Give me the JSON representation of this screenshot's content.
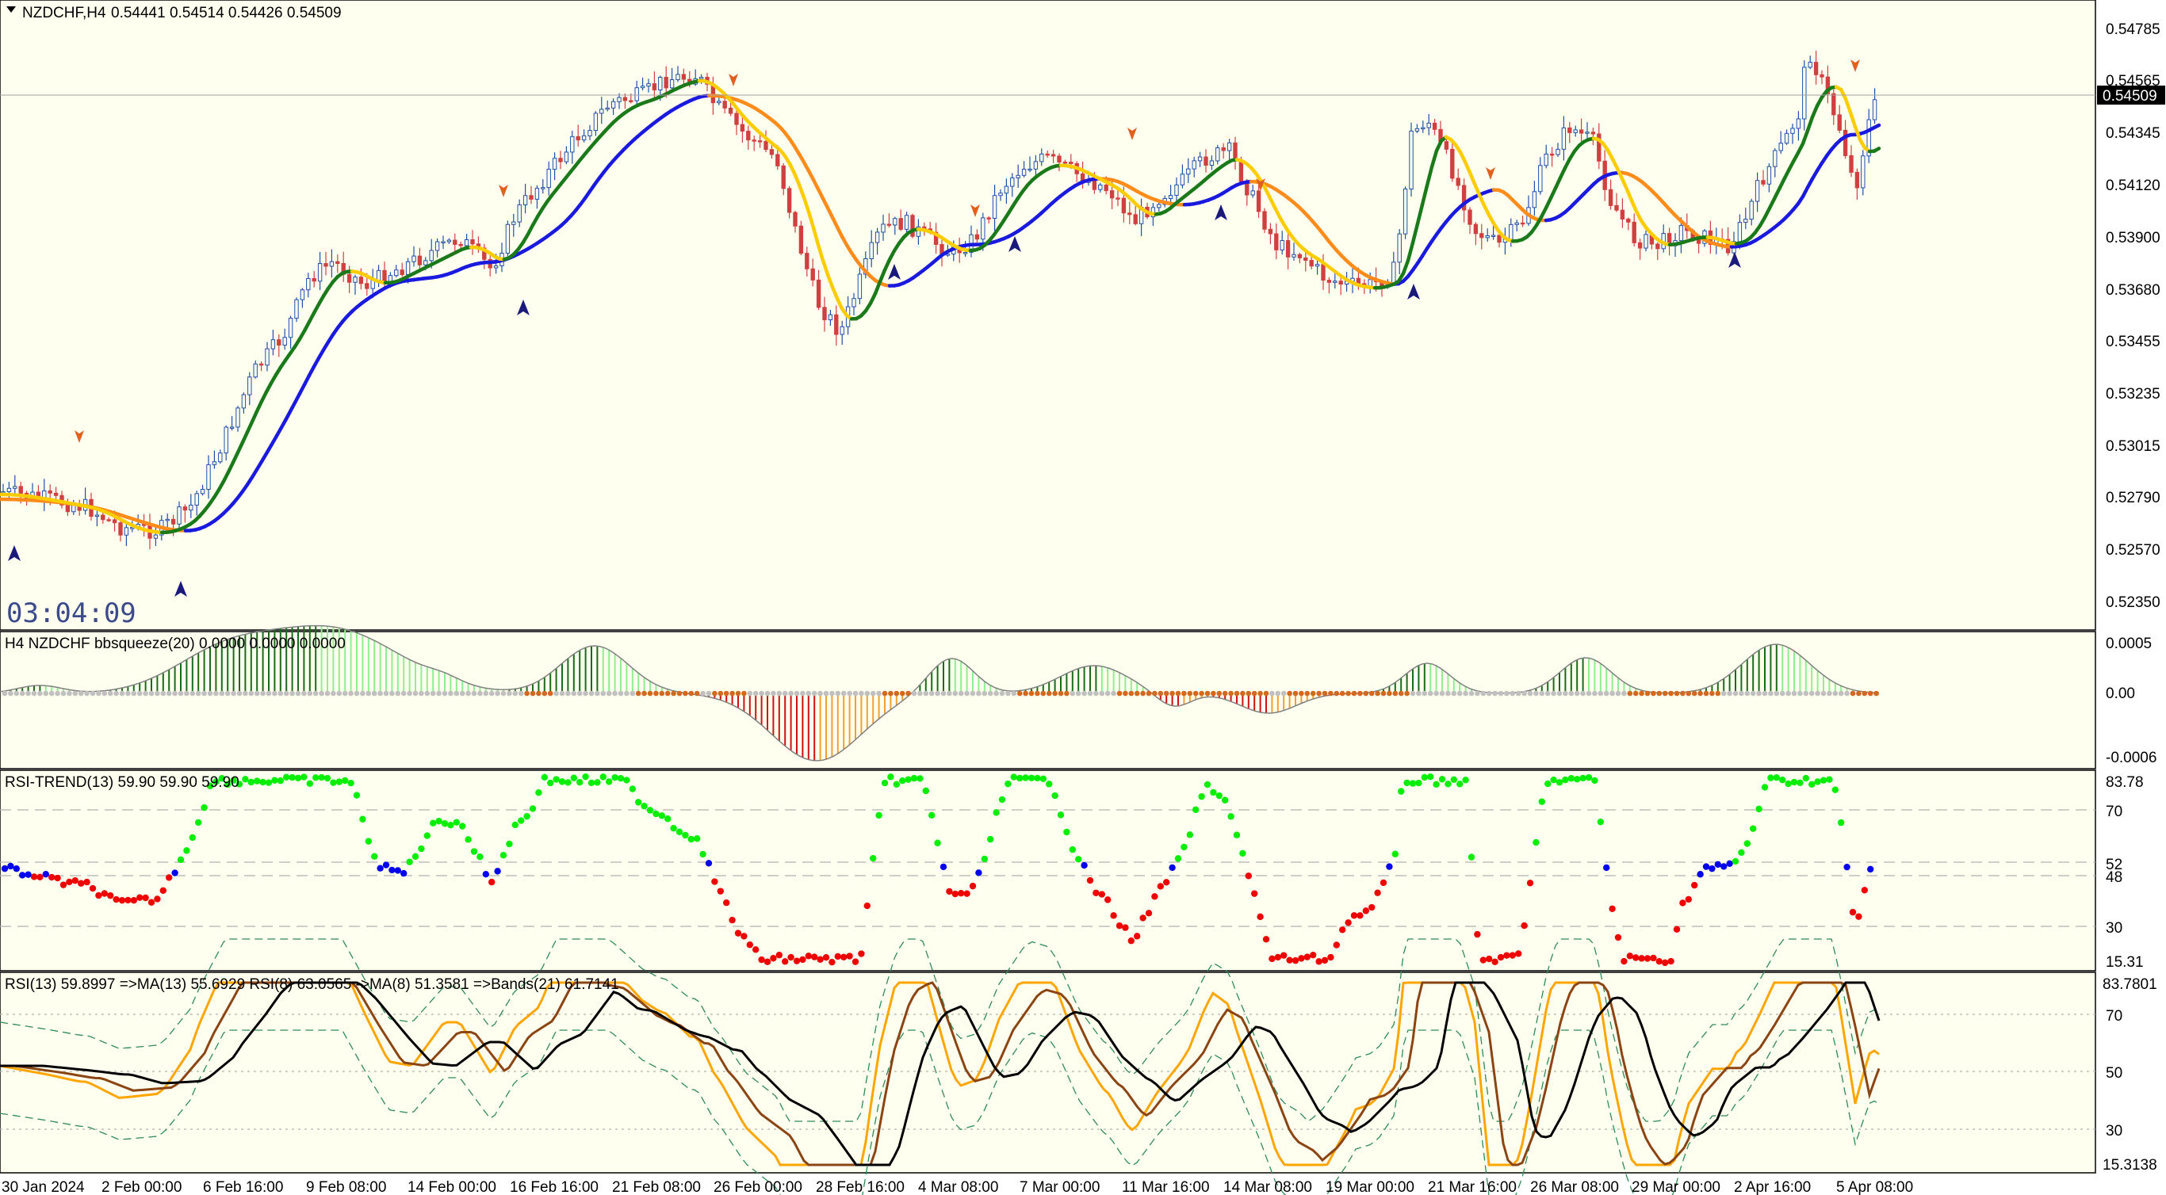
{
  "header": {
    "symbol_label": "NZDCHF,H4",
    "ohlc_label": "0.54441 0.54514 0.54426 0.54509"
  },
  "main_panel": {
    "price_labels": [
      "0.54785",
      "0.54565",
      "0.54345",
      "0.54120",
      "0.53900",
      "0.53680",
      "0.53455",
      "0.53235",
      "0.53015",
      "0.52790",
      "0.52570",
      "0.52350"
    ],
    "current_price_label": "0.54509",
    "countdown": "03:04:09",
    "colors": {
      "background": "#fffff0",
      "bull": "#1f4fa8",
      "bear": "#d04040",
      "fast_ma": "#1a7a1a",
      "fast_ma_alt": "#ffcc00",
      "slow_ma": "#1a1adf",
      "slow_ma_alt": "#ff8c1a",
      "buy_arrow": "#1a1a7a",
      "sell_arrow": "#e06020"
    }
  },
  "bbsqueeze_panel": {
    "title": "H4 NZDCHF bbsqueeze(20) 0.0000 0.0000 0.0000",
    "labels": [
      "0.0005",
      "0.00",
      "-0.0006"
    ],
    "colors": {
      "up_strong": "#1a6a1a",
      "up": "#90ee90",
      "down_strong": "#d01010",
      "down": "#f0a030",
      "squeeze_on": "#d2691e",
      "squeeze_off": "#c0c0c0"
    }
  },
  "rsi_trend_panel": {
    "title": "RSI-TREND(13) 59.90 59.90 59.90",
    "labels": [
      "83.78",
      "70",
      "52",
      "48",
      "30",
      "15.31"
    ],
    "colors": {
      "up": "#00ee00",
      "down": "#ee0000",
      "neutral": "#0000ee"
    }
  },
  "rsi_panel": {
    "title": "RSI(13) 59.8997  =>MA(13) 55.6929  RSI(8) 63.0565  ->MA(8) 51.3581  =>Bands(21) 61.7141",
    "labels": [
      "83.7801",
      "70",
      "50",
      "30",
      "15.3138"
    ],
    "colors": {
      "rsi13": "#8b4513",
      "ma13": "#000000",
      "rsi8": "#ffa500",
      "bands": "#2e8b57"
    }
  },
  "time_axis": [
    "30 Jan 2024",
    "2 Feb 00:00",
    "6 Feb 16:00",
    "9 Feb 08:00",
    "14 Feb 00:00",
    "16 Feb 16:00",
    "21 Feb 08:00",
    "26 Feb 00:00",
    "28 Feb 16:00",
    "4 Mar 08:00",
    "7 Mar 00:00",
    "11 Mar 16:00",
    "14 Mar 08:00",
    "19 Mar 00:00",
    "21 Mar 16:00",
    "26 Mar 08:00",
    "29 Mar 00:00",
    "2 Apr 16:00",
    "5 Apr 08:00"
  ]
}
